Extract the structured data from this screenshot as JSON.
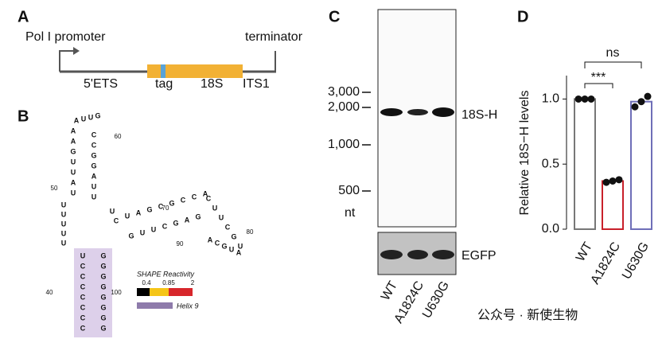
{
  "panel_a": {
    "letter": "A",
    "promoter": "Pol I promoter",
    "terminator": "terminator",
    "segments": [
      "5'ETS",
      "tag",
      "18S",
      "ITS1"
    ]
  },
  "panel_b": {
    "letter": "B",
    "strands": [
      "AUUG",
      "AAGUUAU",
      "CCGGAUU",
      "UUUUU",
      "UC",
      "UCCCCCCC",
      "GGGGGGGG",
      "UAGCGCCA",
      "GUUCGAG",
      "CUUCGU",
      "AUGCA"
    ],
    "positions": [
      "60",
      "50",
      "70",
      "80",
      "90",
      "40",
      "100"
    ],
    "legend_title": "SHAPE Reactivity",
    "legend_ticks": [
      "0.4",
      "0.85",
      "2"
    ],
    "helix_label": "Helix 9"
  },
  "panel_c": {
    "letter": "C",
    "markers": [
      "3,000",
      "2,000",
      "1,000",
      "500"
    ],
    "unit": "nt",
    "bands": [
      "18S-H",
      "EGFP"
    ],
    "lanes": [
      "WT",
      "A1824C",
      "U630G"
    ]
  },
  "chart_data": {
    "type": "bar",
    "letter": "D",
    "ylabel": "Relative 18S−H levels",
    "categories": [
      "WT",
      "A1824C",
      "U630G"
    ],
    "values": [
      1.0,
      0.37,
      0.98
    ],
    "colors": [
      "#777777",
      "#c8202a",
      "#6f6fb8"
    ],
    "points": [
      [
        1.0,
        1.0,
        1.0
      ],
      [
        0.36,
        0.37,
        0.38
      ],
      [
        0.94,
        0.98,
        1.02
      ]
    ],
    "ylim": [
      0,
      1.18
    ],
    "yticks": [
      {
        "value": 0,
        "label": "0.0"
      },
      {
        "value": 0.5,
        "label": "0.5"
      },
      {
        "value": 1,
        "label": "1.0"
      }
    ],
    "annotations": [
      "ns",
      "***"
    ]
  },
  "watermark": "公众号 · 新使生物"
}
